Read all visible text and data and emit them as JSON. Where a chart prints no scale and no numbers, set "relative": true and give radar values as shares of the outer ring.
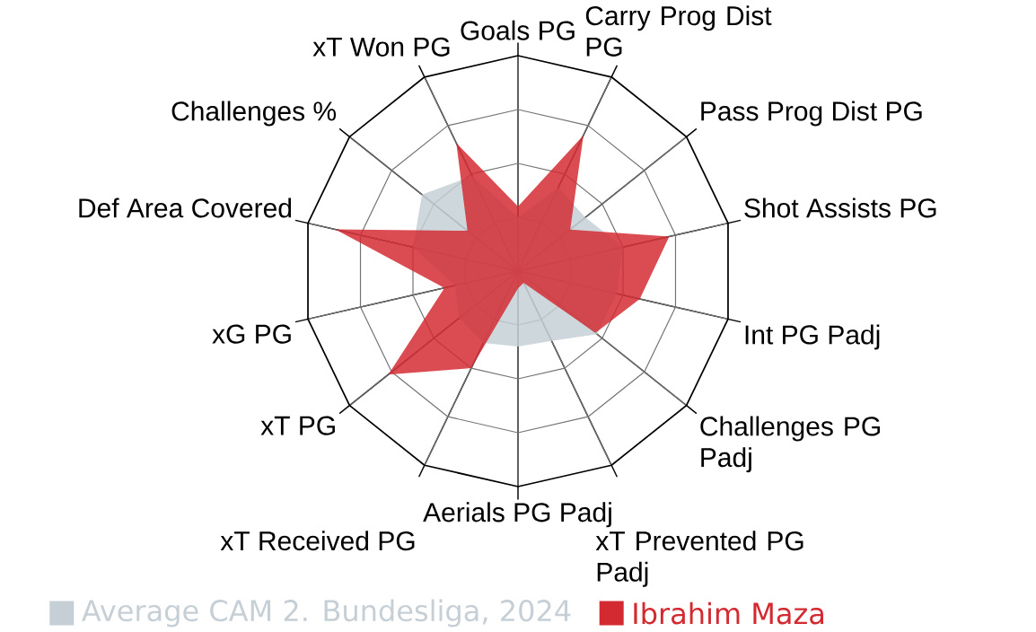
{
  "chart_data": {
    "type": "radar",
    "relative": true,
    "categories": [
      "Goals PG",
      "Carry Prog Dist PG",
      "Pass Prog Dist PG",
      "Shot Assists PG",
      "Int PG Padj",
      "Challenges PG Padj",
      "xT Prevented PG Padj",
      "Aerials PG Padj",
      "xT Received PG",
      "xT PG",
      "xG PG",
      "Def Area Covered",
      "Challenges %",
      "xT Won PG"
    ],
    "series": [
      {
        "name": "Average CAM 2. Bundesliga, 2024",
        "color": "#c5cfd5",
        "values": [
          0.25,
          0.43,
          0.4,
          0.5,
          0.47,
          0.47,
          0.36,
          0.35,
          0.37,
          0.35,
          0.3,
          0.5,
          0.57,
          0.49
        ]
      },
      {
        "name": "Ibrahim Maza",
        "color": "#d32a31",
        "values": [
          0.3,
          0.7,
          0.31,
          0.72,
          0.58,
          0.46,
          0.06,
          0.08,
          0.5,
          0.77,
          0.35,
          0.87,
          0.3,
          0.66
        ]
      }
    ],
    "grid": true,
    "legend": "bottom"
  }
}
